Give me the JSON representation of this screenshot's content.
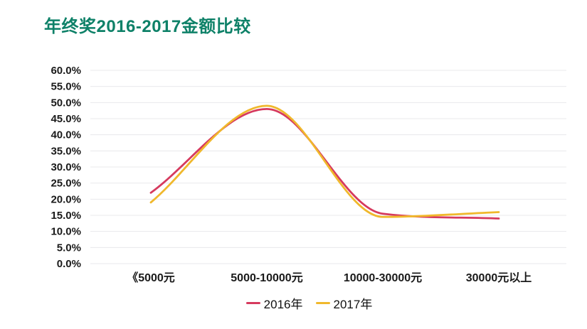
{
  "page": {
    "background": "#ffffff"
  },
  "chart_data": {
    "type": "line",
    "smooth": true,
    "title": "年终奖2016-2017金额比较",
    "title_color": "#0e8168",
    "xlabel": "",
    "ylabel": "",
    "categories": [
      "《5000元",
      "5000-10000元",
      "10000-30000元",
      "30000元以上"
    ],
    "series": [
      {
        "name": "2016年",
        "color": "#d63a5e",
        "values": [
          22.0,
          48.0,
          15.5,
          14.0
        ]
      },
      {
        "name": "2017年",
        "color": "#f0b82c",
        "values": [
          19.0,
          49.0,
          14.5,
          16.0
        ]
      }
    ],
    "ylim": [
      0,
      60
    ],
    "y_tick_step": 5,
    "y_tick_labels": [
      "0.0%",
      "5.0%",
      "10.0%",
      "15.0%",
      "20.0%",
      "25.0%",
      "30.0%",
      "35.0%",
      "40.0%",
      "45.0%",
      "50.0%",
      "55.0%",
      "60.0%"
    ],
    "unit": "percent",
    "grid": "horizontal",
    "gridline_color": "#e8e8eb",
    "axis_text_color": "#1a1a1a",
    "legend_position": "bottom"
  }
}
